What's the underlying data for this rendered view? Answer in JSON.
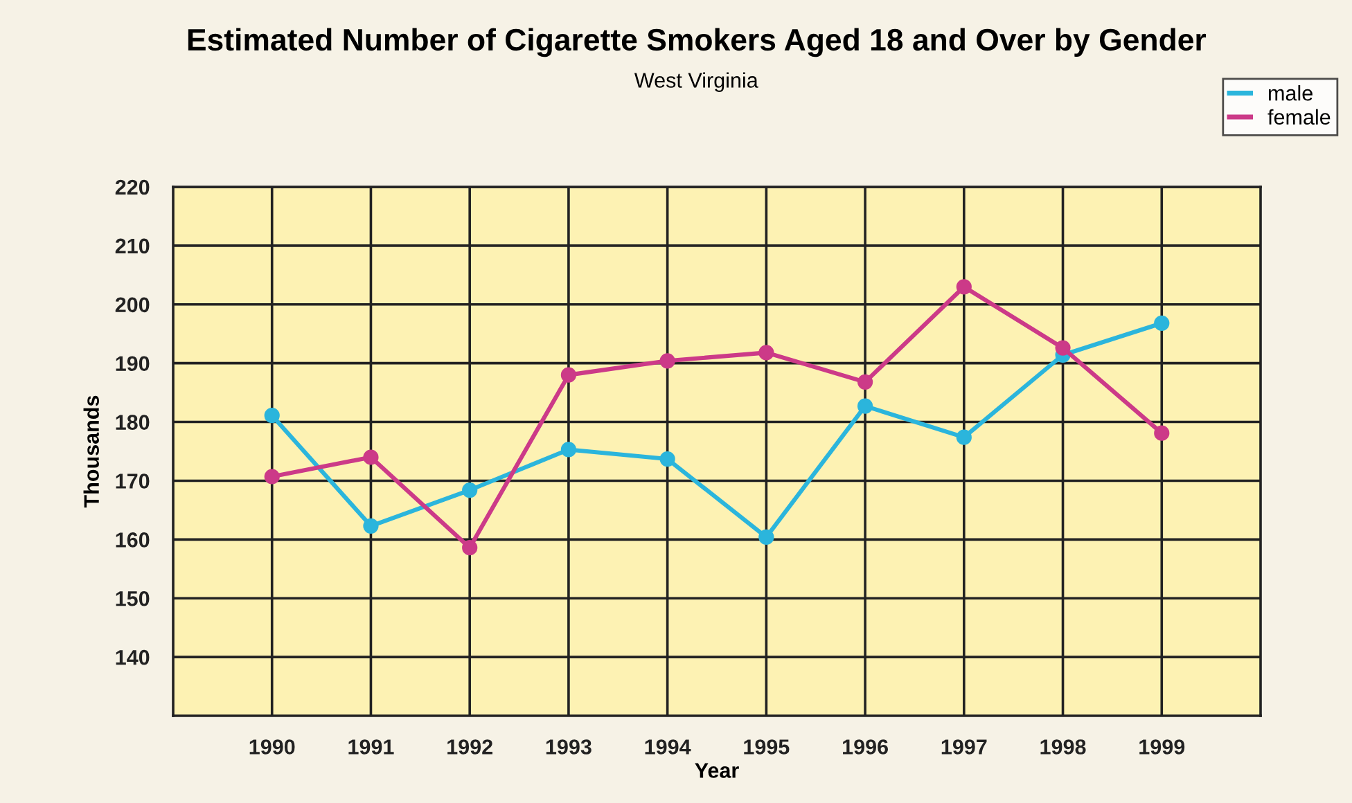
{
  "chart_data": {
    "type": "line",
    "title": "Estimated Number of Cigarette Smokers Aged 18 and Over by Gender",
    "subtitle": "West Virginia",
    "xlabel": "Year",
    "ylabel": "Thousands",
    "x": [
      1990,
      1991,
      1992,
      1993,
      1994,
      1995,
      1996,
      1997,
      1998,
      1999
    ],
    "series": [
      {
        "name": "male",
        "color": "#2bb5dc",
        "values": [
          181.1,
          162.3,
          168.4,
          175.3,
          173.7,
          160.4,
          182.7,
          177.4,
          191.4,
          196.8
        ]
      },
      {
        "name": "female",
        "color": "#cc3a88",
        "values": [
          170.7,
          174.0,
          158.6,
          188.0,
          190.4,
          191.8,
          186.8,
          203.0,
          192.6,
          178.1
        ]
      }
    ],
    "xlim": [
      1989,
      2000
    ],
    "xticks": [
      1990,
      1991,
      1992,
      1993,
      1994,
      1995,
      1996,
      1997,
      1998,
      1999
    ],
    "ylim": [
      130,
      220
    ],
    "yticks": [
      140,
      150,
      160,
      170,
      180,
      190,
      200,
      210,
      220
    ],
    "grid": true,
    "legend": "top right",
    "marker": "circle",
    "line_style": "solid"
  }
}
